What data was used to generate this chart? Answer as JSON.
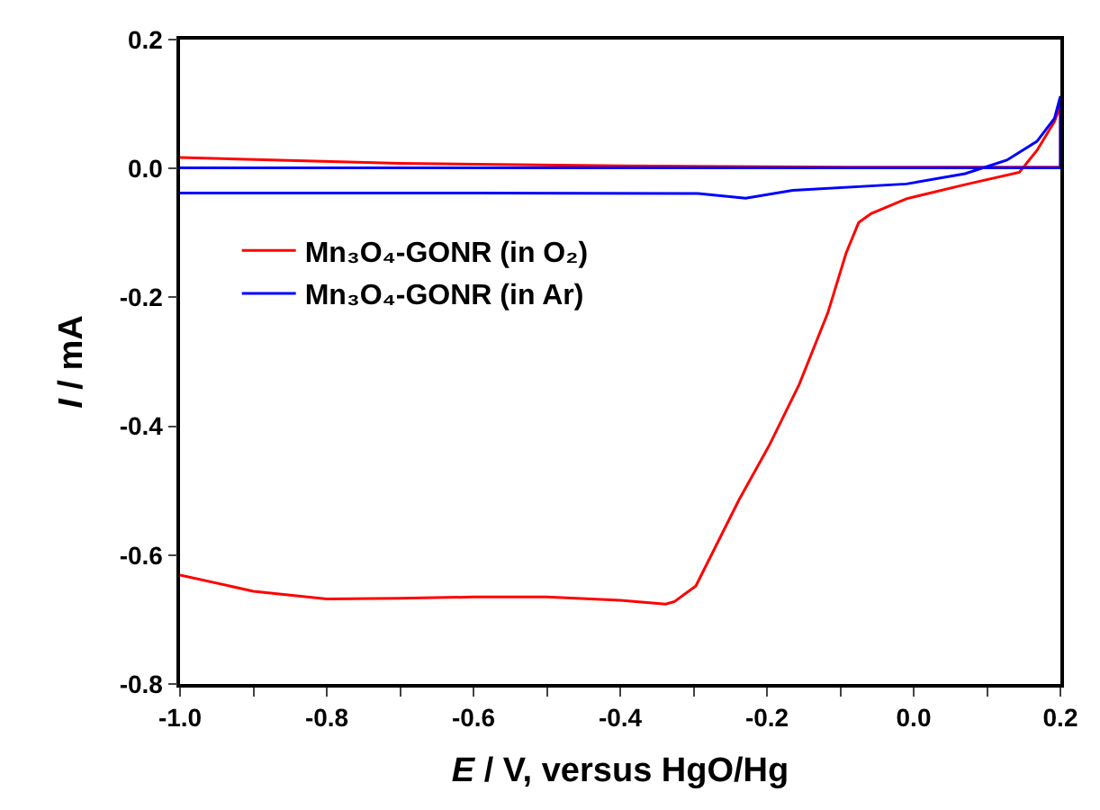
{
  "chart_data": {
    "type": "line",
    "xlabel": "E / V, versus HgO/Hg",
    "ylabel": "I / mA",
    "xlim": [
      -1.0,
      0.2
    ],
    "ylim": [
      -0.8,
      0.2
    ],
    "xticks": [
      {
        "value": -1.0,
        "label": "-1.0"
      },
      {
        "value": -0.9,
        "label": null
      },
      -0.8,
      {
        "value": -0.7,
        "label": null
      },
      -0.6,
      {
        "value": -0.5,
        "label": null
      },
      -0.4,
      {
        "value": -0.3,
        "label": null
      },
      -0.2,
      {
        "value": -0.1,
        "label": null
      },
      {
        "value": 0.0,
        "label": "0.0"
      },
      {
        "value": 0.1,
        "label": null
      },
      0.2
    ],
    "yticks": [
      0.2,
      {
        "value": 0.0,
        "label": "0.0"
      },
      -0.2,
      -0.4,
      -0.6,
      -0.8
    ],
    "legend": "left",
    "marker": "none",
    "line_style": "solid",
    "series": [
      {
        "name": "Mn₃O₄-GONR (in O₂)",
        "color": "#ff0000",
        "x": [
          -1.0,
          -0.9,
          -0.8,
          -0.7,
          -0.6,
          -0.5,
          -0.4,
          -0.338,
          -0.326,
          -0.297,
          -0.238,
          -0.197,
          -0.156,
          -0.117,
          -0.092,
          -0.075,
          -0.058,
          -0.01,
          0.07,
          0.144,
          0.168,
          0.192,
          0.2,
          0.2,
          0.1,
          -0.09,
          -0.4,
          -0.7,
          -1.0
        ],
        "values": [
          -0.631,
          -0.656,
          -0.668,
          -0.667,
          -0.665,
          -0.665,
          -0.67,
          -0.676,
          -0.672,
          -0.648,
          -0.514,
          -0.43,
          -0.335,
          -0.224,
          -0.131,
          -0.084,
          -0.07,
          -0.047,
          -0.025,
          -0.006,
          0.028,
          0.073,
          0.098,
          0.002,
          0.002,
          0.002,
          0.004,
          0.008,
          0.017
        ]
      },
      {
        "name": "Mn₃O₄-GONR (in Ar)",
        "color": "#0000ff",
        "x": [
          -1.0,
          -0.6,
          -0.294,
          -0.229,
          -0.165,
          -0.01,
          0.07,
          0.127,
          0.168,
          0.192,
          0.2,
          0.2,
          -0.4,
          -1.0
        ],
        "values": [
          -0.038,
          -0.038,
          -0.039,
          -0.046,
          -0.034,
          -0.024,
          -0.008,
          0.013,
          0.042,
          0.078,
          0.112,
          0.001,
          0.001,
          0.001
        ]
      }
    ]
  }
}
